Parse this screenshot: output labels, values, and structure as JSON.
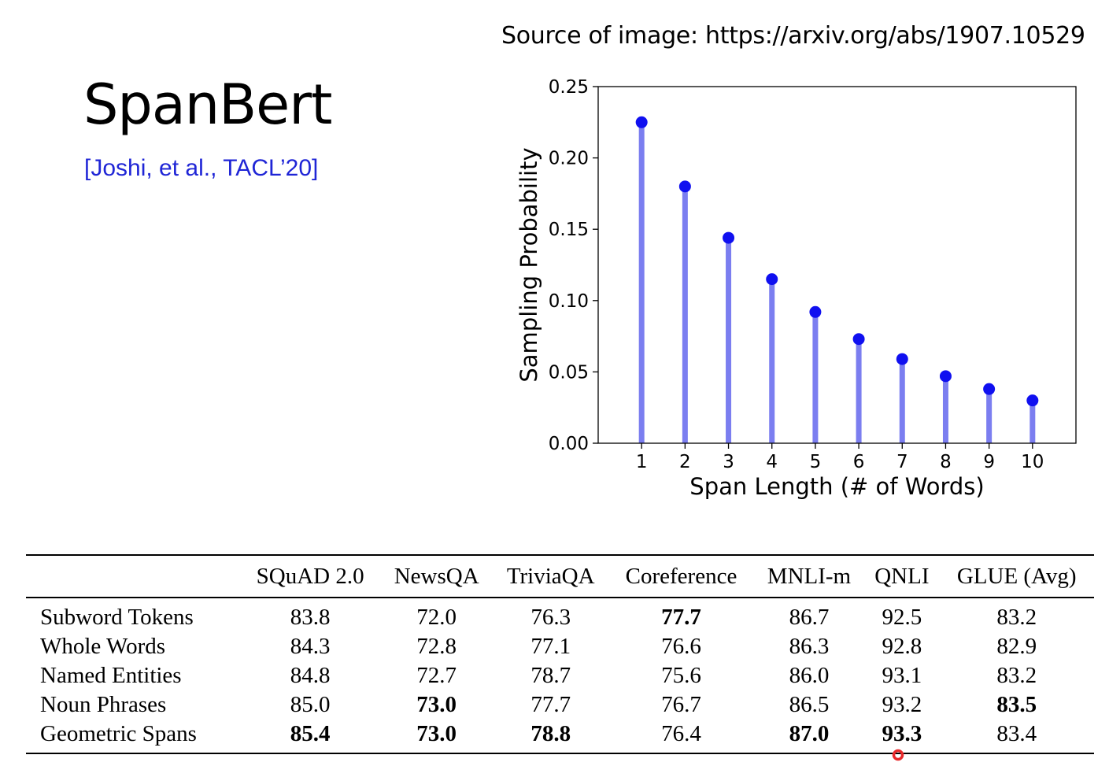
{
  "slide": {
    "title": "SpanBert",
    "citation": "[Joshi, et al., TACL’20]",
    "source": "Source of image: https://arxiv.org/abs/1907.10529"
  },
  "chart_data": {
    "type": "stem",
    "title": "",
    "xlabel": "Span Length (# of Words)",
    "ylabel": "Sampling Probability",
    "x": [
      1,
      2,
      3,
      4,
      5,
      6,
      7,
      8,
      9,
      10
    ],
    "y": [
      0.225,
      0.18,
      0.144,
      0.115,
      0.092,
      0.073,
      0.059,
      0.047,
      0.038,
      0.03
    ],
    "xticks": [
      "1",
      "2",
      "3",
      "4",
      "5",
      "6",
      "7",
      "8",
      "9",
      "10"
    ],
    "yticks": [
      "0.00",
      "0.05",
      "0.10",
      "0.15",
      "0.20",
      "0.25"
    ],
    "ylim": [
      0,
      0.25
    ],
    "xlim": [
      0,
      11
    ],
    "grid": false,
    "stem_color": "#7b7ef0",
    "marker_color": "#1010f0"
  },
  "table": {
    "columns": [
      "",
      "SQuAD 2.0",
      "NewsQA",
      "TriviaQA",
      "Coreference",
      "MNLI-m",
      "QNLI",
      "GLUE (Avg)"
    ],
    "rows": [
      {
        "label": "Subword Tokens",
        "values": [
          "83.8",
          "72.0",
          "76.3",
          "77.7",
          "86.7",
          "92.5",
          "83.2"
        ],
        "bold": [
          false,
          false,
          false,
          true,
          false,
          false,
          false
        ]
      },
      {
        "label": "Whole Words",
        "values": [
          "84.3",
          "72.8",
          "77.1",
          "76.6",
          "86.3",
          "92.8",
          "82.9"
        ],
        "bold": [
          false,
          false,
          false,
          false,
          false,
          false,
          false
        ]
      },
      {
        "label": "Named Entities",
        "values": [
          "84.8",
          "72.7",
          "78.7",
          "75.6",
          "86.0",
          "93.1",
          "83.2"
        ],
        "bold": [
          false,
          false,
          false,
          false,
          false,
          false,
          false
        ]
      },
      {
        "label": "Noun Phrases",
        "values": [
          "85.0",
          "73.0",
          "77.7",
          "76.7",
          "86.5",
          "93.2",
          "83.5"
        ],
        "bold": [
          false,
          true,
          false,
          false,
          false,
          false,
          true
        ]
      },
      {
        "label": "Geometric Spans",
        "values": [
          "85.4",
          "73.0",
          "78.8",
          "76.4",
          "87.0",
          "93.3",
          "83.4"
        ],
        "bold": [
          true,
          true,
          true,
          false,
          true,
          true,
          false
        ]
      }
    ]
  },
  "cursor": {
    "icon": "cursor-ring-icon",
    "color": "#e8292b"
  }
}
